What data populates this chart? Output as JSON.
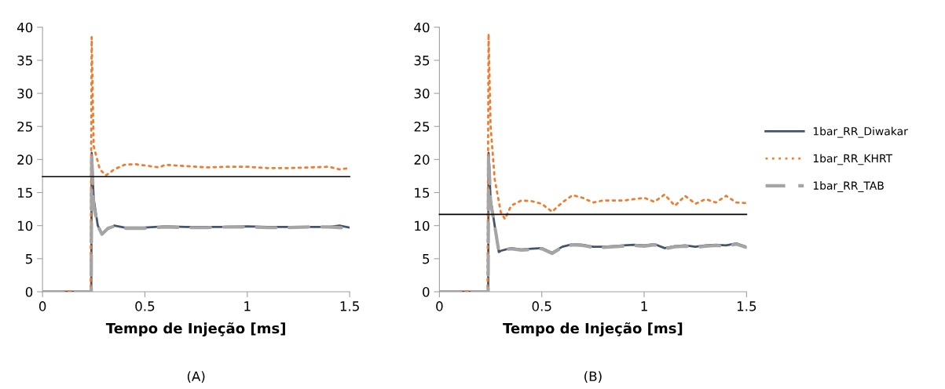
{
  "chart_data": [
    {
      "type": "line",
      "xlabel": "Tempo de Injeção [ms]",
      "annotations": [
        "(A)"
      ],
      "xlim": [
        0,
        1.5
      ],
      "xticks": [
        0,
        0.5,
        1,
        1.5
      ],
      "ylim": [
        0,
        40
      ],
      "yticks": [
        0,
        5,
        10,
        15,
        20,
        25,
        30,
        35,
        40
      ],
      "grid": false,
      "legend": false,
      "ref_lines": [
        {
          "axis": "y",
          "value": 17.4,
          "color": "#000000"
        }
      ],
      "series": [
        {
          "color": "#44546a",
          "line_style": "solid",
          "x": [
            0,
            0.238,
            0.24,
            0.25,
            0.27,
            0.29,
            0.32,
            0.35,
            0.4,
            0.5,
            0.6,
            0.7,
            0.8,
            0.9,
            1.0,
            1.1,
            1.2,
            1.3,
            1.4,
            1.45,
            1.5
          ],
          "values": [
            0,
            0,
            21,
            14,
            10,
            8.8,
            9.5,
            10,
            9.7,
            9.7,
            9.9,
            9.8,
            9.8,
            9.8,
            9.9,
            9.8,
            9.8,
            9.8,
            9.8,
            10,
            9.7
          ]
        },
        {
          "color": "#ed7d31",
          "line_style": "dotted",
          "x": [
            0,
            0.235,
            0.24,
            0.245,
            0.25,
            0.26,
            0.28,
            0.31,
            0.35,
            0.4,
            0.45,
            0.5,
            0.57,
            0.6,
            0.7,
            0.8,
            0.9,
            1.0,
            1.1,
            1.2,
            1.3,
            1.4,
            1.45,
            1.5
          ],
          "values": [
            0,
            0,
            38.5,
            30,
            22,
            20.8,
            18.5,
            17.6,
            18.5,
            19.2,
            19.3,
            19.1,
            18.8,
            19.2,
            19,
            18.8,
            18.9,
            18.9,
            18.7,
            18.7,
            18.8,
            18.9,
            18.5,
            18.7
          ]
        },
        {
          "color": "#a5a5a5",
          "line_style": "dashed",
          "x": [
            0,
            0.238,
            0.24,
            0.25,
            0.27,
            0.29,
            0.32,
            0.35,
            0.4,
            0.5,
            0.6,
            0.7,
            0.8,
            0.9,
            1.0,
            1.1,
            1.2,
            1.3,
            1.4,
            1.5
          ],
          "values": [
            0,
            0,
            20.8,
            13,
            10,
            8.7,
            9.6,
            9.9,
            9.6,
            9.6,
            9.8,
            9.7,
            9.7,
            9.8,
            9.8,
            9.7,
            9.7,
            9.8,
            9.8,
            9.6
          ]
        }
      ]
    },
    {
      "type": "line",
      "xlabel": "Tempo de Injeção [ms]",
      "annotations": [
        "(B)"
      ],
      "xlim": [
        0,
        1.5
      ],
      "xticks": [
        0,
        0.5,
        1,
        1.5
      ],
      "ylim": [
        0,
        40
      ],
      "yticks": [
        0,
        5,
        10,
        15,
        20,
        25,
        30,
        35,
        40
      ],
      "grid": false,
      "legend": "right",
      "ref_lines": [
        {
          "axis": "y",
          "value": 11.7,
          "color": "#000000"
        }
      ],
      "series": [
        {
          "name": "1bar_RR_Diwakar",
          "color": "#44546a",
          "line_style": "solid",
          "x": [
            0,
            0.238,
            0.24,
            0.25,
            0.27,
            0.29,
            0.3,
            0.35,
            0.4,
            0.45,
            0.5,
            0.55,
            0.6,
            0.65,
            0.7,
            0.75,
            0.8,
            0.85,
            0.9,
            0.95,
            1.0,
            1.05,
            1.1,
            1.15,
            1.2,
            1.25,
            1.3,
            1.35,
            1.4,
            1.45,
            1.5
          ],
          "values": [
            0,
            0,
            21,
            14,
            10,
            6,
            6.2,
            6.6,
            6.4,
            6.5,
            6.6,
            5.9,
            6.8,
            7.2,
            7.1,
            6.8,
            6.8,
            6.9,
            7.0,
            7.1,
            7.0,
            7.2,
            6.6,
            6.9,
            7.0,
            6.8,
            7.0,
            7.1,
            7.0,
            7.3,
            6.8
          ]
        },
        {
          "name": "1bar_RR_KHRT",
          "color": "#ed7d31",
          "line_style": "dotted",
          "x": [
            0,
            0.235,
            0.24,
            0.25,
            0.27,
            0.3,
            0.32,
            0.35,
            0.4,
            0.45,
            0.5,
            0.55,
            0.6,
            0.65,
            0.7,
            0.75,
            0.8,
            0.9,
            1.0,
            1.05,
            1.1,
            1.15,
            1.2,
            1.25,
            1.3,
            1.35,
            1.4,
            1.45,
            1.5
          ],
          "values": [
            0,
            0,
            39,
            25,
            17,
            12,
            11,
            13,
            13.8,
            13.7,
            13.3,
            12.1,
            13.5,
            14.6,
            14.2,
            13.5,
            13.8,
            13.8,
            14.2,
            13.6,
            14.7,
            13,
            14.5,
            13.3,
            14,
            13.5,
            14.5,
            13.5,
            13.4
          ]
        },
        {
          "name": "1bar_RR_TAB",
          "color": "#a5a5a5",
          "line_style": "dashed",
          "x": [
            0,
            0.238,
            0.24,
            0.25,
            0.27,
            0.29,
            0.3,
            0.35,
            0.4,
            0.45,
            0.5,
            0.55,
            0.6,
            0.65,
            0.7,
            0.75,
            0.8,
            0.85,
            0.9,
            0.95,
            1.0,
            1.05,
            1.1,
            1.15,
            1.2,
            1.25,
            1.3,
            1.35,
            1.4,
            1.45,
            1.5
          ],
          "values": [
            0,
            0,
            20.8,
            13.5,
            10,
            6.1,
            6.3,
            6.5,
            6.3,
            6.4,
            6.5,
            5.8,
            6.7,
            7.1,
            7.0,
            6.7,
            6.7,
            6.8,
            6.9,
            7.0,
            6.9,
            7.1,
            6.5,
            6.8,
            6.9,
            6.7,
            6.9,
            7.0,
            6.9,
            7.2,
            6.7
          ]
        }
      ]
    }
  ]
}
